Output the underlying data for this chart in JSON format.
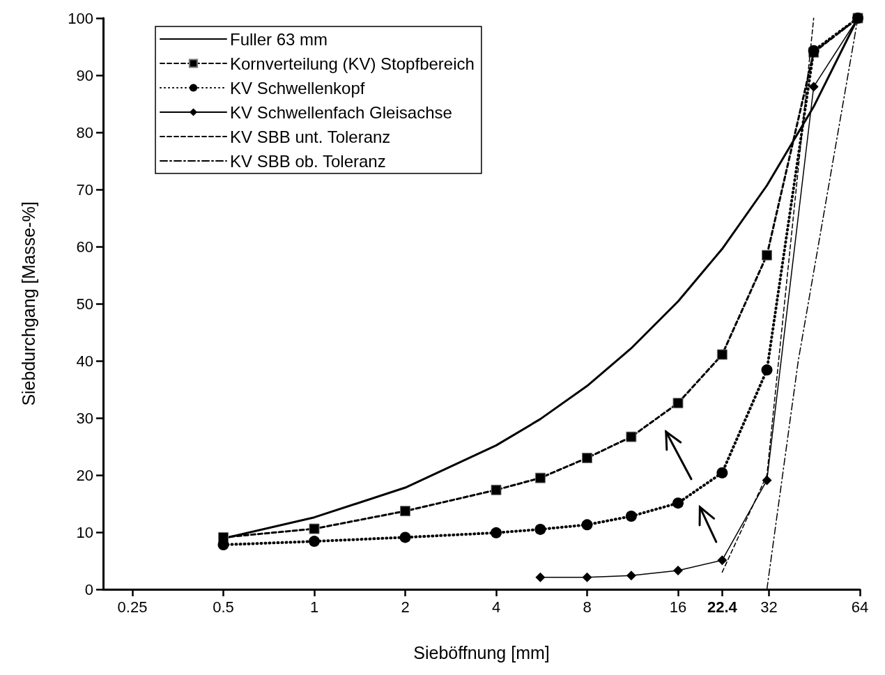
{
  "chart_data": {
    "type": "line",
    "xlabel": "Sieböffnung [mm]",
    "ylabel": "Siebdurchgang [Masse-%]",
    "log": "x",
    "xlim": [
      0.2,
      64
    ],
    "xticks": [
      0.25,
      0.5,
      1,
      2,
      4,
      8,
      16,
      22.4,
      32,
      64
    ],
    "ylim": [
      0,
      100
    ],
    "yticks": [
      0,
      10,
      20,
      30,
      40,
      50,
      60,
      70,
      80,
      90,
      100
    ],
    "grid": false,
    "legend": "top left",
    "series": [
      {
        "name": "Fuller 63 mm",
        "color": "#000000",
        "line_style": "solid",
        "marker": "none",
        "x": [
          0.5,
          1,
          2,
          4,
          5.6,
          8,
          11.2,
          16,
          22.4,
          31.5,
          45,
          63
        ],
        "values": [
          8.9,
          12.6,
          17.8,
          25.2,
          29.8,
          35.6,
          42.2,
          50.4,
          59.6,
          70.7,
          84.5,
          100
        ]
      },
      {
        "name": "Kornverteilung (KV) Stopfbereich",
        "color": "#000000",
        "line_style": "dashed",
        "marker": "square",
        "x": [
          0.5,
          1,
          2,
          4,
          5.6,
          8,
          11.2,
          16,
          22.4,
          31.5,
          45,
          63
        ],
        "values": [
          9.1,
          10.6,
          13.7,
          17.4,
          19.5,
          23.0,
          26.7,
          32.6,
          41.1,
          58.5,
          94.0,
          100
        ]
      },
      {
        "name": "KV Schwellenkopf",
        "color": "#000000",
        "line_style": "dotted",
        "marker": "circle",
        "x": [
          0.5,
          1,
          2,
          4,
          5.6,
          8,
          11.2,
          16,
          22.4,
          31.5,
          45,
          63
        ],
        "values": [
          7.8,
          8.4,
          9.1,
          9.9,
          10.5,
          11.3,
          12.8,
          15.1,
          20.4,
          38.4,
          94.3,
          100
        ]
      },
      {
        "name": "KV Schwellenfach Gleisachse",
        "color": "#000000",
        "line_style": "solid",
        "marker": "diamond",
        "x": [
          5.6,
          8,
          11.2,
          16,
          22.4,
          31.5,
          45,
          63
        ],
        "values": [
          2.1,
          2.1,
          2.4,
          3.3,
          5.1,
          19.1,
          88.0,
          100
        ]
      },
      {
        "name": "KV SBB unt. Toleranz",
        "color": "#000000",
        "line_style": "dashed",
        "marker": "none",
        "x": [
          22.4,
          31.5,
          45
        ],
        "values": [
          3,
          20,
          100
        ]
      },
      {
        "name": "KV SBB ob. Toleranz",
        "color": "#000000",
        "line_style": "dashdot",
        "marker": "none",
        "x": [
          31.5,
          40,
          63
        ],
        "values": [
          0,
          40,
          100
        ]
      }
    ]
  }
}
